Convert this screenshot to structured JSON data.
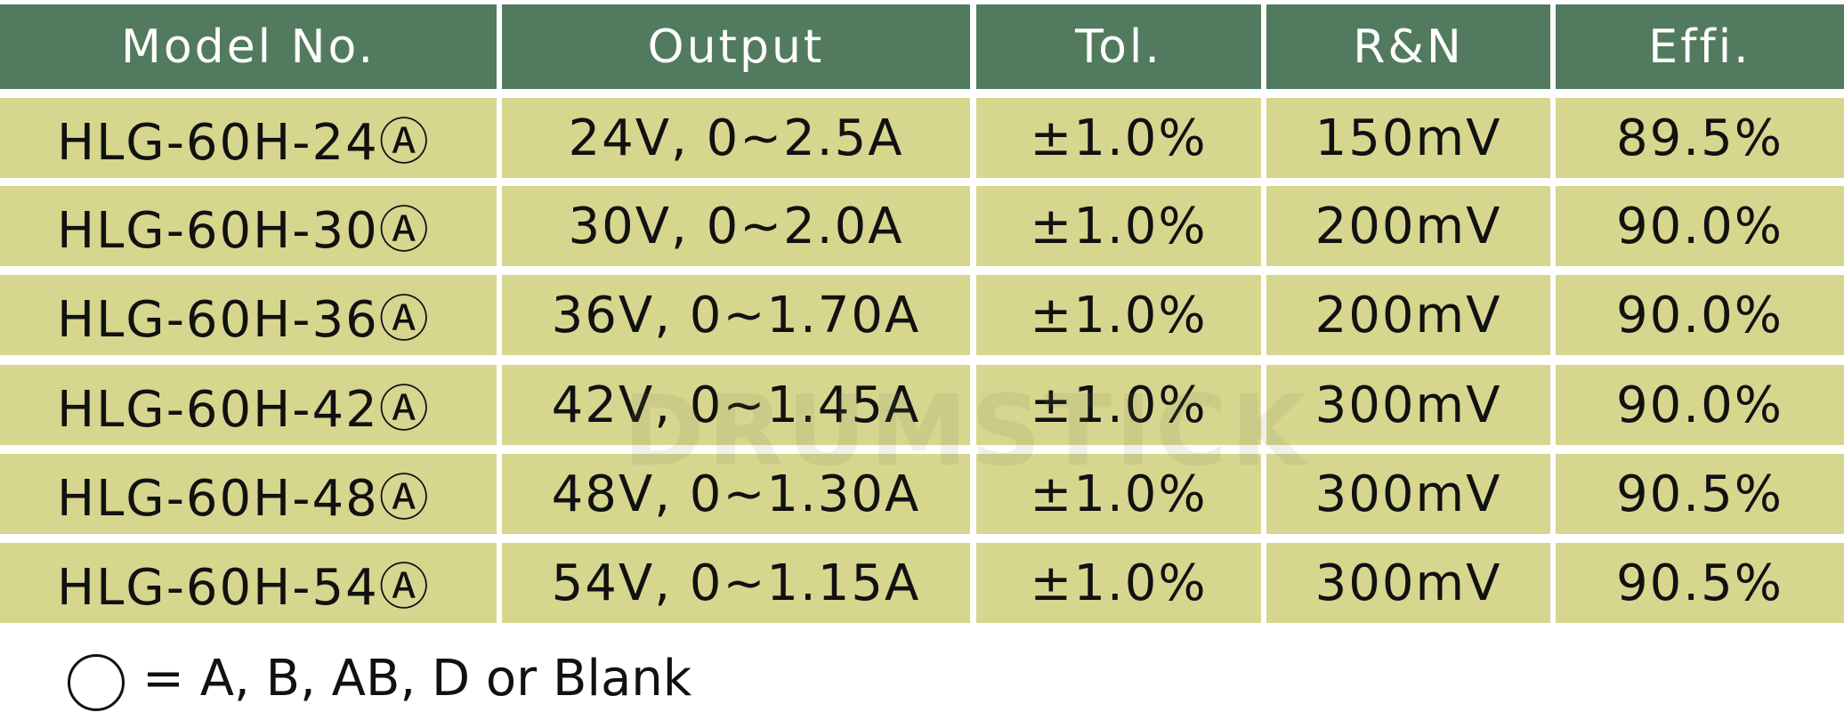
{
  "table": {
    "header": [
      "Model No.",
      "Output",
      "Tol.",
      "R&N",
      "Effi."
    ],
    "rows": [
      [
        "HLG-60H-24Ⓐ",
        "24V, 0~2.5A",
        "±1.0%",
        "150mV",
        "89.5%"
      ],
      [
        "HLG-60H-30Ⓐ",
        "30V, 0~2.0A",
        "±1.0%",
        "200mV",
        "90.0%"
      ],
      [
        "HLG-60H-36Ⓐ",
        "36V, 0~1.70A",
        "±1.0%",
        "200mV",
        "90.0%"
      ],
      [
        "HLG-60H-42Ⓐ",
        "42V, 0~1.45A",
        "±1.0%",
        "300mV",
        "90.0%"
      ],
      [
        "HLG-60H-48Ⓐ",
        "48V, 0~1.30A",
        "±1.0%",
        "300mV",
        "90.5%"
      ],
      [
        "HLG-60H-54Ⓐ",
        "54V, 0~1.15A",
        "±1.0%",
        "300mV",
        "90.5%"
      ]
    ]
  },
  "footnote": "= A, B, AB, D or Blank",
  "watermark": "DRUMSTICK"
}
